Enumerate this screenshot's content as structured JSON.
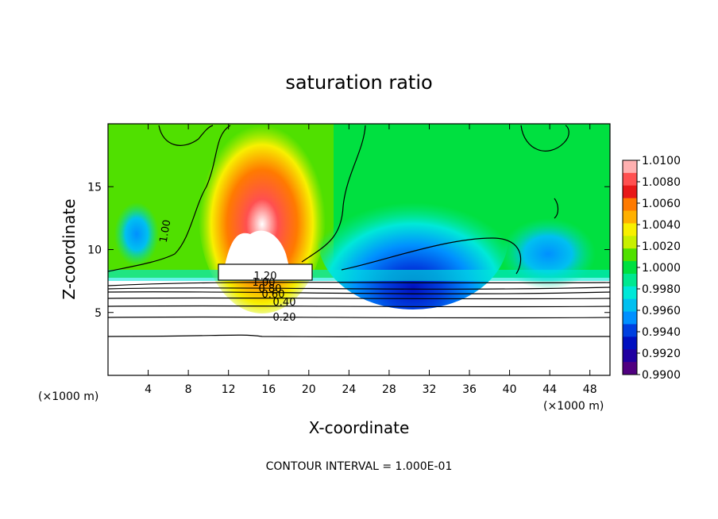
{
  "chart_data": {
    "type": "heatmap",
    "title": "saturation ratio",
    "xlabel": "X-coordinate",
    "ylabel": "Z-coordinate",
    "x_unit_left": "(×1000 m)",
    "x_unit_right": "(×1000 m)",
    "xlim": [
      0,
      50
    ],
    "ylim": [
      0,
      20
    ],
    "x_ticks": [
      4,
      8,
      12,
      16,
      20,
      24,
      28,
      32,
      36,
      40,
      44,
      48
    ],
    "y_ticks": [
      5,
      10,
      15
    ],
    "footer": "CONTOUR INTERVAL = 1.000E-01",
    "colorbar": {
      "ticks": [
        "1.0100",
        "1.0080",
        "1.0060",
        "1.0040",
        "1.0020",
        "1.0000",
        "0.9980",
        "0.9960",
        "0.9940",
        "0.9920",
        "0.9900"
      ],
      "colors": [
        "#ffb0b0",
        "#ff5050",
        "#e81818",
        "#ff7a00",
        "#ffb000",
        "#f8f000",
        "#c8f000",
        "#50e000",
        "#00e040",
        "#00e890",
        "#00e8d8",
        "#00c0f0",
        "#0090ff",
        "#0040e0",
        "#0010c0",
        "#2000a0",
        "#500080"
      ]
    },
    "contour_labels": [
      "1.00",
      "1.20",
      "1.00",
      "0.80",
      "0.60",
      "0.40",
      "0.20"
    ],
    "contour_levels": [
      {
        "label": "0.20",
        "z": 4.7
      },
      {
        "label": "0.40",
        "z": 5.9
      },
      {
        "label": "0.60",
        "z": 6.5
      },
      {
        "label": "0.80",
        "z": 6.9
      },
      {
        "label": "1.00",
        "z": 7.3
      },
      {
        "label": "",
        "z": 3.2
      }
    ]
  }
}
